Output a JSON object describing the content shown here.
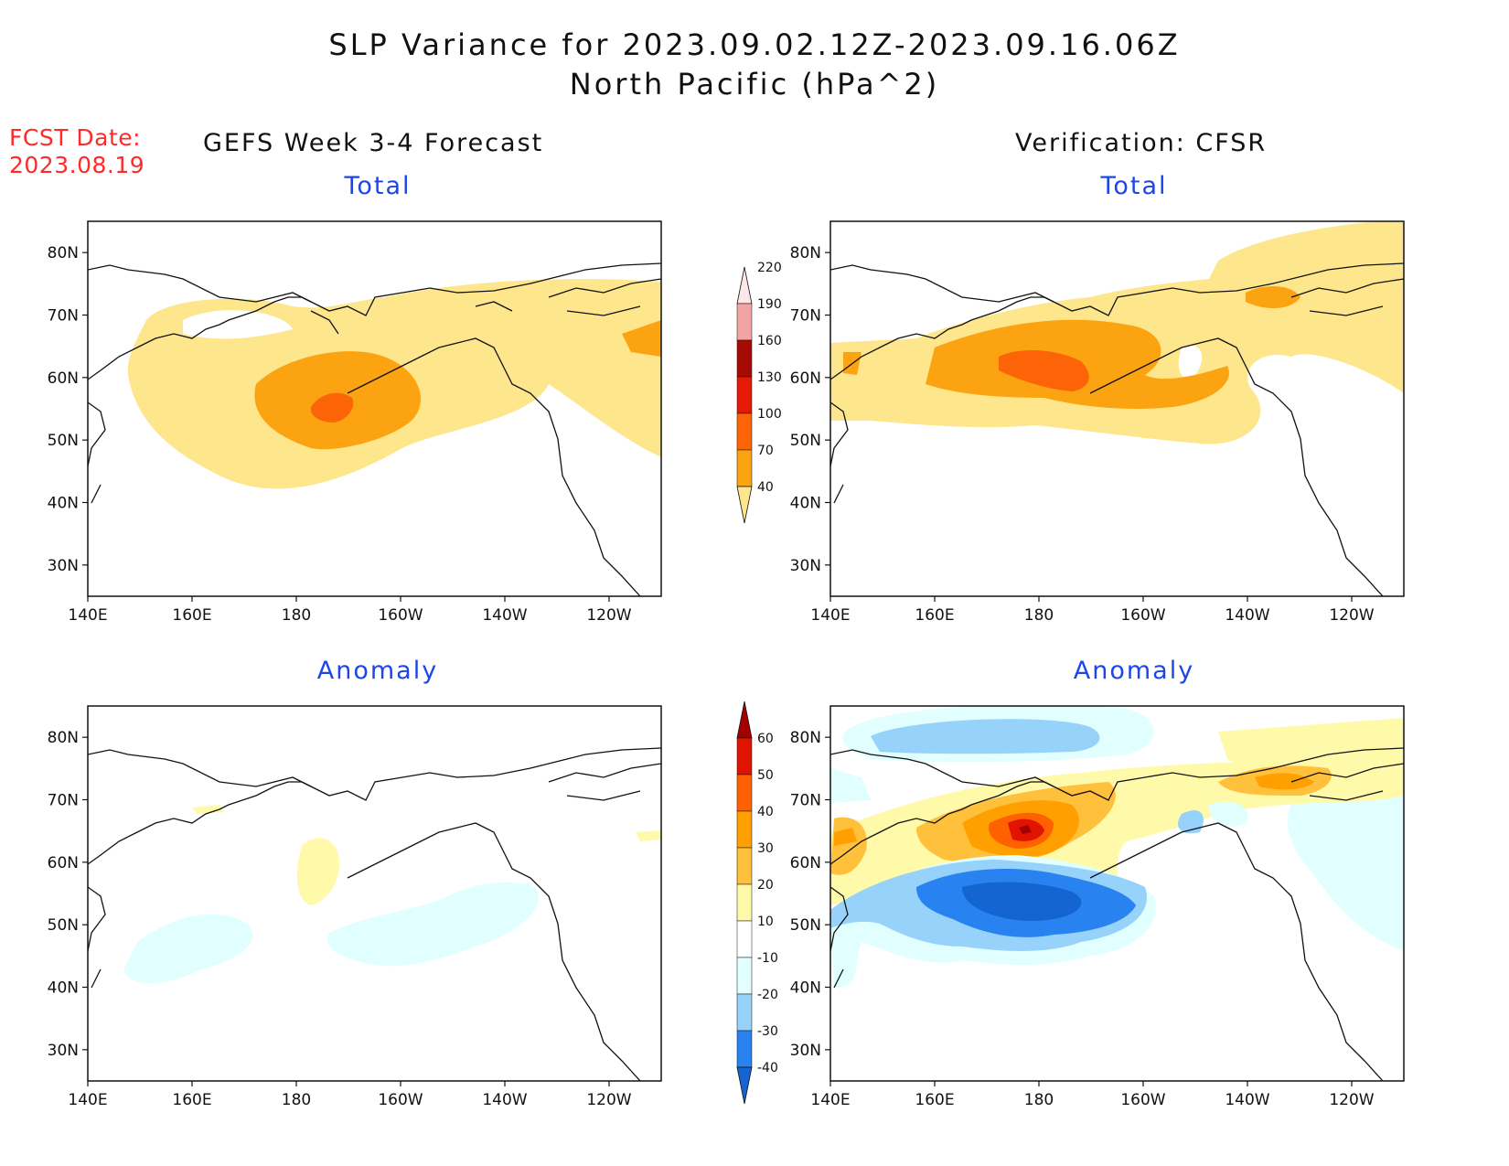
{
  "header": {
    "title_line1": "SLP Variance for 2023.09.02.12Z-2023.09.16.06Z",
    "title_line2": "North Pacific (hPa^2)",
    "fcst_label": "FCST Date:",
    "fcst_date": "2023.08.19",
    "left_column_title": "GEFS Week 3-4 Forecast",
    "right_column_title": "Verification: CFSR"
  },
  "panels": {
    "top_left_title": "Total",
    "top_right_title": "Total",
    "bottom_left_title": "Anomaly",
    "bottom_right_title": "Anomaly"
  },
  "axes": {
    "lon_labels": [
      "140E",
      "160E",
      "180",
      "160W",
      "140W",
      "120W"
    ],
    "lat_labels": [
      "80N",
      "70N",
      "60N",
      "50N",
      "40N",
      "30N"
    ],
    "lon_range": [
      140,
      250
    ],
    "lat_range": [
      25,
      85
    ]
  },
  "colorbars": {
    "total": {
      "levels": [
        "40",
        "70",
        "100",
        "130",
        "160",
        "190",
        "220"
      ],
      "colors": [
        "#fde68c",
        "#fca312",
        "#fc6407",
        "#e41a05",
        "#a50a05",
        "#f2a4a4",
        "#fde7e7"
      ]
    },
    "anomaly": {
      "levels": [
        "-40",
        "-30",
        "-20",
        "-10",
        "10",
        "20",
        "30",
        "40",
        "50",
        "60"
      ],
      "colors": [
        "#1464d2",
        "#2882f0",
        "#96d2fa",
        "#e1ffff",
        "#ffffff",
        "#fffaaa",
        "#ffc03c",
        "#ffa000",
        "#ff6000",
        "#e11400",
        "#a50000"
      ]
    }
  },
  "map_data": {
    "region": "North Pacific",
    "variable": "SLP variance (hPa^2)",
    "panels": [
      {
        "id": "forecast-total",
        "features": [
          "broad 40-70 band from 160E to 120W between 45N and 70N",
          "70-100 core centered near 180, 55N",
          "100-130 spot near 178E, 54N"
        ]
      },
      {
        "id": "verification-total",
        "features": [
          "40-70 band from 140E to 120W between 48N and 80N",
          "70-100 region from 160E to 160W near 55N-62N",
          "100-130 core near 180, 56N",
          "70-100 spot near 130W, 68N"
        ]
      },
      {
        "id": "forecast-anomaly",
        "features": [
          "weak 10-20 positive near 180, 55N",
          "weak -20 to -10 negative areas south of 50N"
        ]
      },
      {
        "id": "verification-anomaly",
        "features": [
          "positive 30-60 near 180, 60N",
          "negative -40 to -30 near 175E, 45N",
          "positive 20-30 near 130W, 67N",
          "negative -20 band near 80N"
        ]
      }
    ]
  }
}
